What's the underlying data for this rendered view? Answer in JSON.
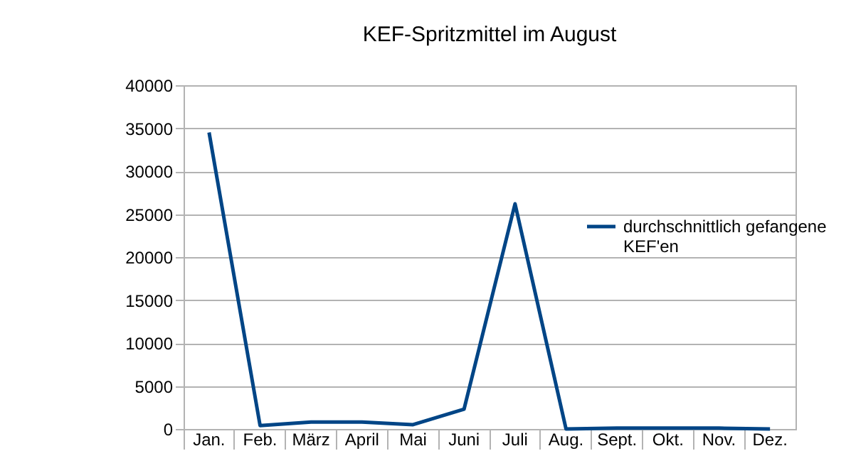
{
  "chart_data": {
    "type": "line",
    "title": "KEF-Spritzmittel im August",
    "categories": [
      "Jan.",
      "Feb.",
      "März",
      "April",
      "Mai",
      "Juni",
      "Juli",
      "Aug.",
      "Sept.",
      "Okt.",
      "Nov.",
      "Dez."
    ],
    "series": [
      {
        "name": "durchschnittlich gefangene KEF'en",
        "color": "#004586",
        "values": [
          34500,
          400,
          800,
          800,
          500,
          2300,
          26200,
          0,
          100,
          100,
          100,
          0
        ]
      }
    ],
    "ylim": [
      0,
      40000
    ],
    "yticks": [
      0,
      5000,
      10000,
      15000,
      20000,
      25000,
      30000,
      35000,
      40000
    ],
    "grid": "y",
    "legend": "right",
    "line_style": "solid",
    "marker": "none"
  }
}
